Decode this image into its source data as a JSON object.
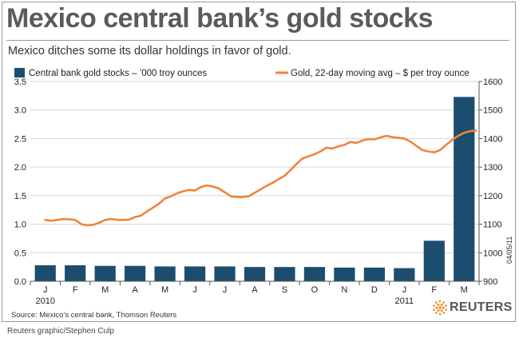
{
  "title": "Mexico central bank’s gold stocks",
  "subtitle": "Mexico ditches some its dollar holdings in favor of gold.",
  "source": "Source:  Mexico’s central bank, Thomson Reuters",
  "credit": "Reuters graphic/Stephen Culp",
  "date_stamp": "04/05/11",
  "logo_text": "REUTERS",
  "colors": {
    "bar": "#1d4d6e",
    "line": "#f0843c",
    "grid": "#d6d6d6",
    "logo_orange": "#f28a2b"
  },
  "chart_data": {
    "type": "bar+line",
    "legend": {
      "bars": "Central bank gold stocks – ’000 troy ounces",
      "line": "Gold, 22-day moving avg – $ per troy ounce"
    },
    "categories": [
      "J",
      "F",
      "M",
      "A",
      "M",
      "J",
      "J",
      "A",
      "S",
      "O",
      "N",
      "D",
      "J",
      "F",
      "M"
    ],
    "year_labels": [
      {
        "index": 0,
        "label": "2010"
      },
      {
        "index": 12,
        "label": "2011"
      }
    ],
    "left_axis": {
      "min": 0,
      "max": 3.5,
      "ticks": [
        "0.0",
        "0.5",
        "1.0",
        "1.5",
        "2.0",
        "2.5",
        "3.0",
        "3.5"
      ]
    },
    "right_axis": {
      "min": 900,
      "max": 1600,
      "ticks": [
        "900",
        "1000",
        "1100",
        "1200",
        "1300",
        "1400",
        "1500",
        "1600"
      ]
    },
    "bars": [
      0.28,
      0.28,
      0.27,
      0.27,
      0.26,
      0.26,
      0.26,
      0.25,
      0.25,
      0.25,
      0.24,
      0.24,
      0.23,
      0.71,
      3.23
    ],
    "line_series": {
      "name": "Gold, 22-day moving avg",
      "x": [
        0,
        0.2,
        0.4,
        0.6,
        0.8,
        1.0,
        1.2,
        1.4,
        1.6,
        1.8,
        2.0,
        2.2,
        2.4,
        2.6,
        2.8,
        3.0,
        3.2,
        3.4,
        3.6,
        3.8,
        4.0,
        4.2,
        4.4,
        4.6,
        4.8,
        5.0,
        5.2,
        5.4,
        5.6,
        5.8,
        6.0,
        6.2,
        6.4,
        6.6,
        6.8,
        7.0,
        7.2,
        7.4,
        7.6,
        7.8,
        8.0,
        8.2,
        8.4,
        8.6,
        8.8,
        9.0,
        9.2,
        9.4,
        9.6,
        9.8,
        10.0,
        10.2,
        10.4,
        10.6,
        10.8,
        11.0,
        11.2,
        11.4,
        11.6,
        11.8,
        12.0,
        12.2,
        12.4,
        12.6,
        12.8,
        13.0,
        13.2,
        13.4,
        13.6,
        13.8,
        14.0,
        14.2,
        14.4
      ],
      "y": [
        1115,
        1112,
        1115,
        1118,
        1117,
        1115,
        1100,
        1096,
        1098,
        1105,
        1115,
        1118,
        1115,
        1115,
        1116,
        1125,
        1130,
        1145,
        1158,
        1172,
        1190,
        1198,
        1208,
        1215,
        1220,
        1218,
        1230,
        1236,
        1232,
        1225,
        1212,
        1198,
        1195,
        1195,
        1198,
        1210,
        1222,
        1235,
        1245,
        1258,
        1270,
        1290,
        1312,
        1330,
        1338,
        1345,
        1355,
        1368,
        1365,
        1373,
        1378,
        1388,
        1385,
        1393,
        1398,
        1397,
        1404,
        1410,
        1405,
        1403,
        1400,
        1390,
        1375,
        1360,
        1355,
        1352,
        1360,
        1378,
        1395,
        1410,
        1420,
        1426,
        1428
      ]
    }
  }
}
